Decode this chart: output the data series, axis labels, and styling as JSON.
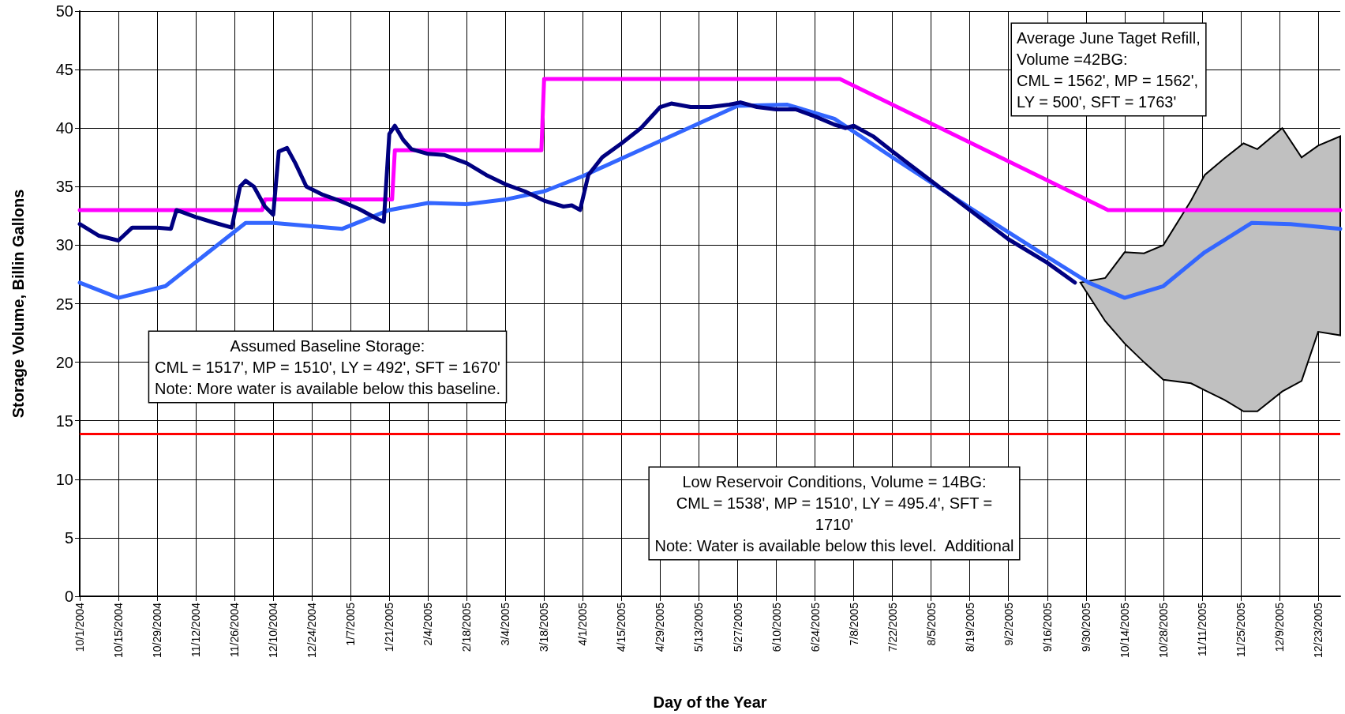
{
  "chart_data": {
    "type": "line",
    "xlabel": "Day of the Year",
    "ylabel": "Storage Volume, Billin Gallons",
    "xlim": [
      "2004-10-01",
      "2005-12-31"
    ],
    "ylim": [
      0,
      50
    ],
    "yticks": [
      0,
      5,
      10,
      15,
      20,
      25,
      30,
      35,
      40,
      45,
      50
    ],
    "xticks": [
      {
        "value": "2004-10-01",
        "label": "10/1/2004"
      },
      {
        "value": "2004-10-15",
        "label": "10/15/2004"
      },
      {
        "value": "2004-10-29",
        "label": "10/29/2004"
      },
      {
        "value": "2004-11-12",
        "label": "11/12/2004"
      },
      {
        "value": "2004-11-26",
        "label": "11/26/2004"
      },
      {
        "value": "2004-12-10",
        "label": "12/10/2004"
      },
      {
        "value": "2004-12-24",
        "label": "12/24/2004"
      },
      {
        "value": "2005-01-07",
        "label": "1/7/2005"
      },
      {
        "value": "2005-01-21",
        "label": "1/21/2005"
      },
      {
        "value": "2005-02-04",
        "label": "2/4/2005"
      },
      {
        "value": "2005-02-18",
        "label": "2/18/2005"
      },
      {
        "value": "2005-03-04",
        "label": "3/4/2005"
      },
      {
        "value": "2005-03-18",
        "label": "3/18/2005"
      },
      {
        "value": "2005-04-01",
        "label": "4/1/2005"
      },
      {
        "value": "2005-04-15",
        "label": "4/15/2005"
      },
      {
        "value": "2005-04-29",
        "label": "4/29/2005"
      },
      {
        "value": "2005-05-13",
        "label": "5/13/2005"
      },
      {
        "value": "2005-05-27",
        "label": "5/27/2005"
      },
      {
        "value": "2005-06-10",
        "label": "6/10/2005"
      },
      {
        "value": "2005-06-24",
        "label": "6/24/2005"
      },
      {
        "value": "2005-07-08",
        "label": "7/8/2005"
      },
      {
        "value": "2005-07-22",
        "label": "7/22/2005"
      },
      {
        "value": "2005-08-05",
        "label": "8/5/2005"
      },
      {
        "value": "2005-08-19",
        "label": "8/19/2005"
      },
      {
        "value": "2005-09-02",
        "label": "9/2/2005"
      },
      {
        "value": "2005-09-16",
        "label": "9/16/2005"
      },
      {
        "value": "2005-09-30",
        "label": "9/30/2005"
      },
      {
        "value": "2005-10-14",
        "label": "10/14/2005"
      },
      {
        "value": "2005-10-28",
        "label": "10/28/2005"
      },
      {
        "value": "2005-11-11",
        "label": "11/11/2005"
      },
      {
        "value": "2005-11-25",
        "label": "11/25/2005"
      },
      {
        "value": "2005-12-09",
        "label": "12/9/2005"
      },
      {
        "value": "2005-12-23",
        "label": "12/23/2005"
      }
    ],
    "grid": true,
    "marker": "none",
    "series": [
      {
        "type": "area",
        "color": "#c0c0c0",
        "x": [
          "2005-09-28",
          "2005-10-07",
          "2005-10-14",
          "2005-10-21",
          "2005-10-28",
          "2005-11-07",
          "2005-11-12",
          "2005-11-19",
          "2005-11-26",
          "2005-12-01",
          "2005-12-10",
          "2005-12-17",
          "2005-12-23",
          "2005-12-31"
        ],
        "values": [
          null,
          null,
          null,
          null,
          null,
          null,
          null,
          null,
          null,
          null,
          null,
          null,
          null,
          null
        ],
        "upper": [
          26.8,
          27.2,
          29.4,
          29.3,
          30.0,
          33.8,
          36.0,
          37.4,
          38.7,
          38.2,
          40.0,
          37.5,
          38.5,
          39.3
        ],
        "lower": [
          26.8,
          23.5,
          21.6,
          20.0,
          18.5,
          18.2,
          17.6,
          16.8,
          15.8,
          15.8,
          17.5,
          18.4,
          22.6,
          22.3
        ]
      },
      {
        "color": "#ff00ff",
        "x": [
          "2004-10-01",
          "2004-12-06",
          "2004-12-07",
          "2005-01-22",
          "2005-01-23",
          "2005-03-17",
          "2005-03-18",
          "2005-07-03",
          "2005-10-08",
          "2005-12-31"
        ],
        "values": [
          33.0,
          33.0,
          33.9,
          33.9,
          38.1,
          38.1,
          44.2,
          44.2,
          33.0,
          33.0
        ]
      },
      {
        "color": "#3366ff",
        "x": [
          "2004-10-01",
          "2004-10-15",
          "2004-11-01",
          "2004-11-30",
          "2004-12-10",
          "2005-01-04",
          "2005-01-21",
          "2005-02-04",
          "2005-02-18",
          "2005-03-04",
          "2005-03-18",
          "2005-04-01",
          "2005-05-27",
          "2005-06-14",
          "2005-07-01",
          "2005-07-22",
          "2005-08-19",
          "2005-09-16",
          "2005-10-01",
          "2005-10-14",
          "2005-10-28",
          "2005-11-12",
          "2005-11-29",
          "2005-12-13",
          "2005-12-31"
        ],
        "values": [
          26.8,
          25.5,
          26.5,
          31.9,
          31.9,
          31.4,
          33.0,
          33.6,
          33.5,
          33.9,
          34.6,
          35.9,
          41.9,
          42.0,
          40.8,
          37.5,
          33.2,
          29.0,
          26.8,
          25.5,
          26.5,
          29.4,
          31.9,
          31.8,
          31.4
        ]
      },
      {
        "color": "#000080",
        "x": [
          "2004-10-01",
          "2004-10-08",
          "2004-10-15",
          "2004-10-20",
          "2004-10-29",
          "2004-11-03",
          "2004-11-05",
          "2004-11-12",
          "2004-11-19",
          "2004-11-25",
          "2004-11-28",
          "2004-11-30",
          "2004-12-03",
          "2004-12-07",
          "2004-12-10",
          "2004-12-12",
          "2004-12-15",
          "2004-12-18",
          "2004-12-22",
          "2004-12-28",
          "2005-01-03",
          "2005-01-10",
          "2005-01-17",
          "2005-01-19",
          "2005-01-21",
          "2005-01-23",
          "2005-01-26",
          "2005-01-29",
          "2005-02-04",
          "2005-02-10",
          "2005-02-18",
          "2005-02-25",
          "2005-03-04",
          "2005-03-11",
          "2005-03-18",
          "2005-03-25",
          "2005-03-28",
          "2005-03-31",
          "2005-04-03",
          "2005-04-08",
          "2005-04-15",
          "2005-04-22",
          "2005-04-29",
          "2005-05-03",
          "2005-05-10",
          "2005-05-17",
          "2005-05-24",
          "2005-05-28",
          "2005-06-03",
          "2005-06-10",
          "2005-06-17",
          "2005-06-24",
          "2005-07-01",
          "2005-07-05",
          "2005-07-08",
          "2005-07-15",
          "2005-07-22",
          "2005-08-05",
          "2005-08-19",
          "2005-09-02",
          "2005-09-16",
          "2005-09-26"
        ],
        "values": [
          31.8,
          30.8,
          30.4,
          31.5,
          31.5,
          31.4,
          33.0,
          32.4,
          31.9,
          31.5,
          35.0,
          35.5,
          35.0,
          33.3,
          32.6,
          38.0,
          38.3,
          37.0,
          35.0,
          34.3,
          33.8,
          33.1,
          32.2,
          32.0,
          39.5,
          40.2,
          39.0,
          38.2,
          37.8,
          37.7,
          37.0,
          36.0,
          35.2,
          34.6,
          33.8,
          33.3,
          33.4,
          33.0,
          36.0,
          37.5,
          38.7,
          40.0,
          41.8,
          42.1,
          41.8,
          41.8,
          42.0,
          42.2,
          41.8,
          41.6,
          41.6,
          41.0,
          40.3,
          40.0,
          40.2,
          39.3,
          38.0,
          35.5,
          33.0,
          30.5,
          28.5,
          26.8
        ]
      }
    ],
    "ref_lines": [
      {
        "axis": "y",
        "value": 13.9,
        "color": "#ff0000"
      }
    ],
    "annotations": [
      "Average June Taget Refill,\nVolume =42BG:\nCML = 1562', MP = 1562',\nLY = 500', SFT = 1763'",
      "Assumed Baseline Storage:\nCML = 1517', MP = 1510', LY = 492', SFT = 1670'\nNote: More water is available below this baseline.",
      "Low Reservoir Conditions, Volume = 14BG:\nCML = 1538', MP = 1510', LY = 495.4', SFT =\n1710'\nNote: Water is available below this level.  Additional"
    ]
  }
}
